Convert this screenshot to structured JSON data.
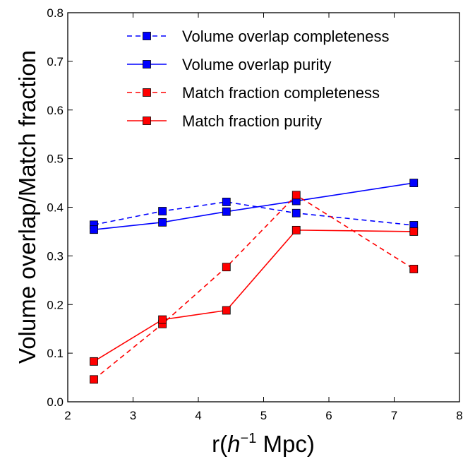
{
  "chart_data": {
    "type": "line",
    "xlabel": {
      "prefix": "r(",
      "h": "h",
      "exp": "−1",
      "suffix": " Mpc)"
    },
    "ylabel": "Volume overlap/Match fraction",
    "xlim": [
      2,
      8
    ],
    "ylim": [
      0.0,
      0.8
    ],
    "xticks": [
      "2",
      "3",
      "4",
      "5",
      "6",
      "7",
      "8"
    ],
    "yticks": [
      "0.0",
      "0.1",
      "0.2",
      "0.3",
      "0.4",
      "0.5",
      "0.6",
      "0.7",
      "0.8"
    ],
    "grid": false,
    "legend_position": "top-right",
    "series": [
      {
        "name": "Volume overlap completeness",
        "color": "#0000ff",
        "dash": true,
        "x": [
          2.4,
          3.45,
          4.43,
          5.5,
          7.3
        ],
        "y": [
          0.364,
          0.392,
          0.411,
          0.388,
          0.363
        ]
      },
      {
        "name": "Volume overlap purity",
        "color": "#0000ff",
        "dash": false,
        "x": [
          2.4,
          3.45,
          4.43,
          5.5,
          7.3
        ],
        "y": [
          0.354,
          0.369,
          0.391,
          0.413,
          0.45
        ]
      },
      {
        "name": "Match fraction completeness",
        "color": "#ff0000",
        "dash": true,
        "x": [
          2.4,
          3.45,
          4.43,
          5.5,
          7.3
        ],
        "y": [
          0.046,
          0.16,
          0.277,
          0.425,
          0.273
        ]
      },
      {
        "name": "Match fraction purity",
        "color": "#ff0000",
        "dash": false,
        "x": [
          2.4,
          3.45,
          4.43,
          5.5,
          7.3
        ],
        "y": [
          0.083,
          0.169,
          0.188,
          0.353,
          0.35
        ]
      }
    ]
  }
}
